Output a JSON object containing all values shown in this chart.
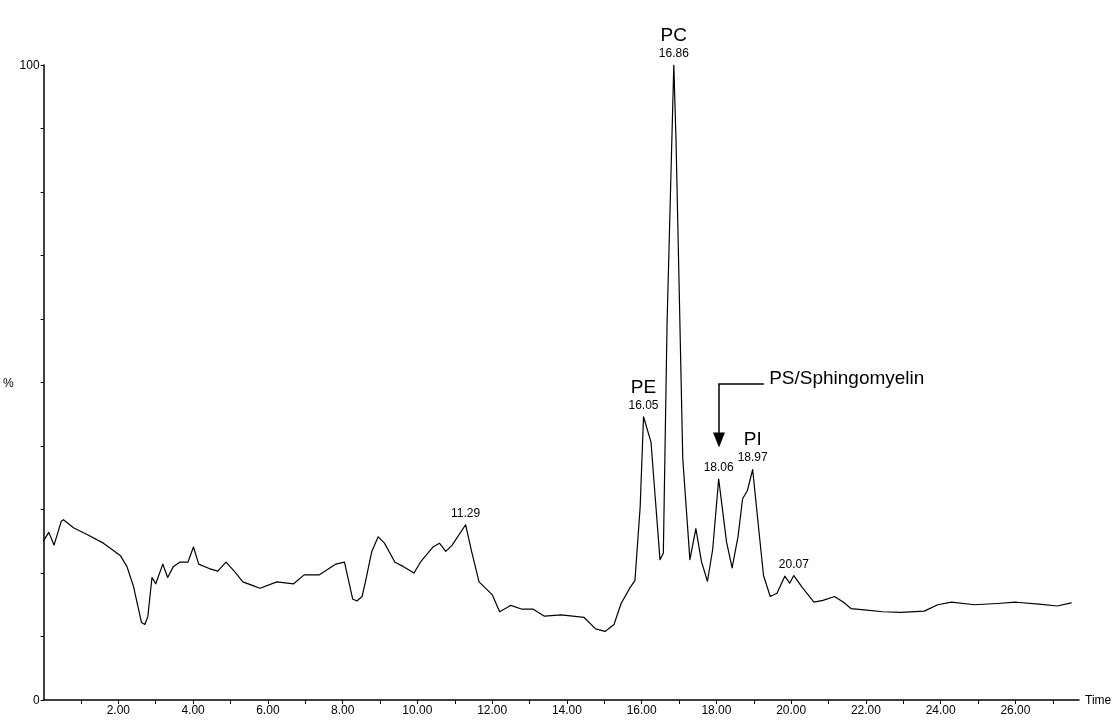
{
  "chart_data": {
    "type": "line",
    "xlabel": "Time",
    "ylabel": "%",
    "xlim": [
      0,
      27.7
    ],
    "ylim": [
      0,
      100
    ],
    "xticks": [
      {
        "value": 1,
        "label": null
      },
      {
        "value": 2,
        "label": "2.00"
      },
      {
        "value": 3,
        "label": null
      },
      {
        "value": 4,
        "label": "4.00"
      },
      {
        "value": 5,
        "label": null
      },
      {
        "value": 6,
        "label": "6.00"
      },
      {
        "value": 7,
        "label": null
      },
      {
        "value": 8,
        "label": "8.00"
      },
      {
        "value": 9,
        "label": null
      },
      {
        "value": 10,
        "label": "10.00"
      },
      {
        "value": 11,
        "label": null
      },
      {
        "value": 12,
        "label": "12.00"
      },
      {
        "value": 13,
        "label": null
      },
      {
        "value": 14,
        "label": "14.00"
      },
      {
        "value": 15,
        "label": null
      },
      {
        "value": 16,
        "label": "16.00"
      },
      {
        "value": 17,
        "label": null
      },
      {
        "value": 18,
        "label": "18.00"
      },
      {
        "value": 19,
        "label": null
      },
      {
        "value": 20,
        "label": "20.00"
      },
      {
        "value": 21,
        "label": null
      },
      {
        "value": 22,
        "label": "22.00"
      },
      {
        "value": 23,
        "label": null
      },
      {
        "value": 24,
        "label": "24.00"
      },
      {
        "value": 25,
        "label": null
      },
      {
        "value": 26,
        "label": "26.00"
      },
      {
        "value": 27,
        "label": null
      }
    ],
    "yticks": [
      0,
      {
        "value": 10,
        "label": null
      },
      {
        "value": 20,
        "label": null
      },
      {
        "value": 30,
        "label": null
      },
      {
        "value": 40,
        "label": null
      },
      {
        "value": 50,
        "label": null
      },
      {
        "value": 60,
        "label": null
      },
      {
        "value": 70,
        "label": null
      },
      {
        "value": 80,
        "label": null
      },
      {
        "value": 90,
        "label": null
      },
      100
    ],
    "grid": false,
    "marker": "none",
    "line_style": "solid",
    "series": [
      {
        "color": "#000000",
        "x": [
          0,
          0.14,
          0.28,
          0.47,
          0.53,
          0.81,
          1.15,
          1.6,
          2.06,
          2.23,
          2.4,
          2.62,
          2.71,
          2.79,
          2.9,
          3.0,
          3.19,
          3.32,
          3.47,
          3.64,
          3.86,
          4.01,
          4.15,
          4.43,
          4.66,
          4.88,
          5.1,
          5.33,
          5.79,
          6.24,
          6.69,
          6.97,
          7.37,
          7.82,
          8.05,
          8.14,
          8.27,
          8.38,
          8.52,
          8.61,
          8.78,
          8.95,
          9.12,
          9.4,
          9.63,
          9.91,
          10.08,
          10.42,
          10.59,
          10.76,
          10.93,
          11.29,
          11.45,
          11.65,
          12.0,
          12.2,
          12.5,
          12.8,
          13.1,
          13.4,
          13.85,
          14.46,
          14.77,
          15.02,
          15.26,
          15.45,
          15.69,
          15.82,
          15.96,
          16.05,
          16.25,
          16.49,
          16.58,
          16.68,
          16.86,
          16.92,
          17.1,
          17.29,
          17.45,
          17.6,
          17.76,
          17.9,
          18.06,
          18.27,
          18.42,
          18.58,
          18.7,
          18.83,
          18.97,
          19.13,
          19.26,
          19.44,
          19.62,
          19.83,
          19.96,
          20.07,
          20.3,
          20.61,
          20.85,
          21.16,
          21.4,
          21.6,
          21.96,
          22.45,
          22.94,
          23.56,
          23.92,
          24.29,
          24.9,
          25.52,
          26.0,
          26.63,
          27.12,
          27.49
        ],
        "values": [
          25.1,
          26.4,
          24.4,
          28.1,
          28.4,
          27.1,
          26.1,
          24.7,
          22.7,
          21.0,
          18.0,
          12.2,
          11.9,
          13.2,
          19.3,
          18.3,
          21.4,
          19.3,
          21.0,
          21.7,
          21.7,
          24.1,
          21.4,
          20.7,
          20.3,
          21.7,
          20.3,
          18.6,
          17.6,
          18.6,
          18.3,
          19.7,
          19.7,
          21.4,
          21.7,
          19.3,
          15.9,
          15.6,
          16.3,
          18.6,
          23.4,
          25.7,
          24.7,
          21.7,
          21.0,
          20.0,
          21.7,
          24.1,
          24.7,
          23.4,
          24.4,
          27.6,
          23.4,
          18.6,
          16.6,
          13.9,
          14.9,
          14.3,
          14.3,
          13.2,
          13.4,
          13.0,
          11.2,
          10.8,
          11.9,
          15.2,
          17.7,
          18.8,
          30.4,
          44.6,
          40.6,
          22.1,
          23.1,
          59.4,
          100,
          88,
          38,
          22.1,
          27.0,
          21.8,
          18.7,
          23.7,
          34.8,
          24.9,
          20.8,
          25.8,
          31.7,
          33.0,
          36.3,
          27.0,
          19.6,
          16.3,
          16.8,
          19.5,
          18.4,
          19.6,
          17.7,
          15.4,
          15.7,
          16.3,
          15.4,
          14.4,
          14.2,
          13.9,
          13.8,
          14.0,
          15.0,
          15.4,
          15.0,
          15.2,
          15.4,
          15.1,
          14.8,
          15.3
        ]
      }
    ],
    "annotations": [
      {
        "text": "11.29",
        "x": 11.29,
        "y": 27.6
      },
      {
        "text": "16.05",
        "x": 16.05,
        "y": 44.6
      },
      {
        "text": "PE",
        "x": 16.05,
        "y": 44.6
      },
      {
        "text": "16.86",
        "x": 16.86,
        "y": 100
      },
      {
        "text": "PC",
        "x": 16.86,
        "y": 100
      },
      {
        "text": "18.06",
        "x": 18.06,
        "y": 34.8
      },
      "PS/Sphingomyelin",
      {
        "text": "18.97",
        "x": 18.97,
        "y": 36.3
      },
      {
        "text": "PI",
        "x": 18.97,
        "y": 36.3
      },
      {
        "text": "20.07",
        "x": 20.07,
        "y": 19.6
      }
    ]
  }
}
